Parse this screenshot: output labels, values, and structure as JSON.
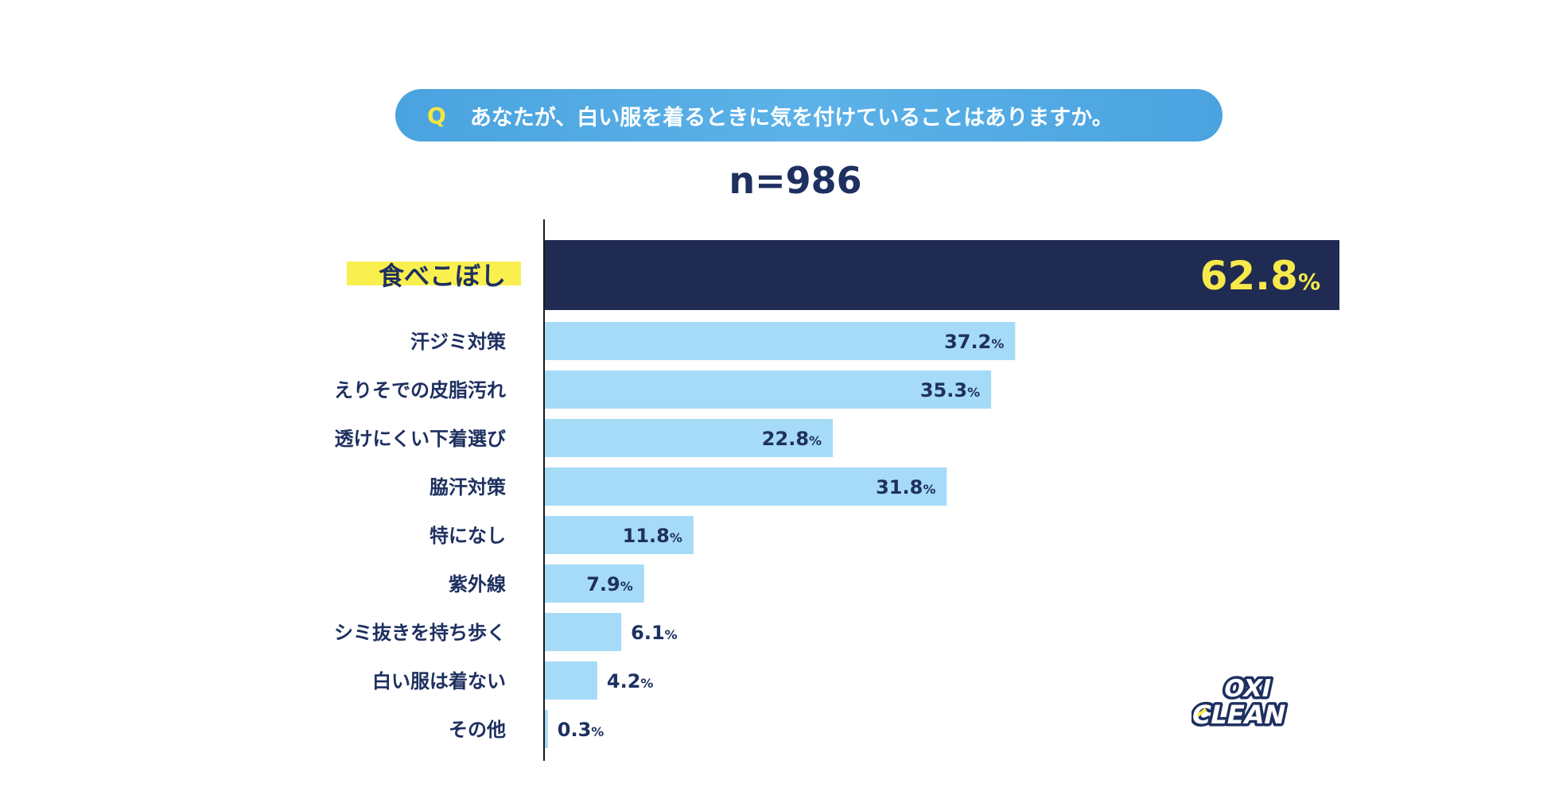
{
  "question": {
    "marker": "Q",
    "text": "あなたが、白い服を着るときに気を付けていることはありますか。"
  },
  "sample_size": "n=986",
  "logo": {
    "line1": "OXI",
    "line2": "CLEAN"
  },
  "colors": {
    "highlight_bar": "#1f2b52",
    "bar": "#a6dbf7",
    "text": "#1e3060",
    "highlight_value": "#f7e94a",
    "highlight_label_bg": "#f9ef4f"
  },
  "chart_data": {
    "type": "bar",
    "orientation": "horizontal",
    "unit": "%",
    "xlim": [
      0,
      62.8
    ],
    "categories": [
      "食べこぼし",
      "汗ジミ対策",
      "えりそでの皮脂汚れ",
      "透けにくい下着選び",
      "脇汗対策",
      "特になし",
      "紫外線",
      "シミ抜きを持ち歩く",
      "白い服は着ない",
      "その他"
    ],
    "values": [
      62.8,
      37.2,
      35.3,
      22.8,
      31.8,
      11.8,
      7.9,
      6.1,
      4.2,
      0.3
    ],
    "value_labels": [
      "62.8",
      "37.2",
      "35.3",
      "22.8",
      "31.8",
      "11.8",
      "7.9",
      "6.1",
      "4.2",
      "0.3"
    ],
    "highlight_index": 0
  }
}
